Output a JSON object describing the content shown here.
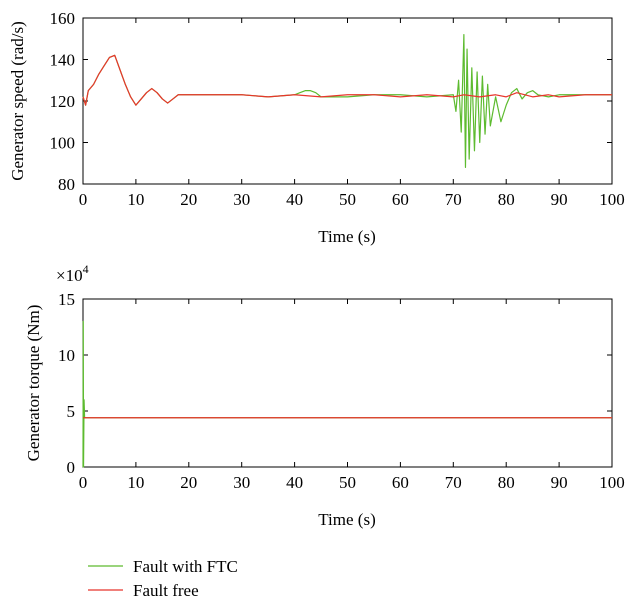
{
  "chart_data": [
    {
      "type": "line",
      "title": "",
      "xlabel": "Time (s)",
      "ylabel": "Generator speed (rad/s)",
      "xlim": [
        0,
        100
      ],
      "ylim": [
        80,
        160
      ],
      "xticks": [
        0,
        10,
        20,
        30,
        40,
        50,
        60,
        70,
        80,
        90,
        100
      ],
      "yticks": [
        80,
        100,
        120,
        140,
        160
      ],
      "grid": false,
      "series": [
        {
          "name": "Fault with FTC",
          "color": "#5dbb2f",
          "x": [
            0,
            0.5,
            1,
            2,
            3,
            4,
            5,
            6,
            7,
            8,
            9,
            10,
            11,
            12,
            13,
            14,
            15,
            16,
            17,
            18,
            20,
            25,
            30,
            35,
            40,
            41,
            42,
            43,
            44,
            45,
            50,
            55,
            60,
            65,
            70,
            70.5,
            71,
            71.5,
            72,
            72.3,
            72.6,
            73,
            73.5,
            74,
            74.5,
            75,
            75.5,
            76,
            76.5,
            77,
            78,
            79,
            80,
            81,
            82,
            83,
            84,
            85,
            86,
            88,
            90,
            95,
            100
          ],
          "y": [
            122,
            118,
            125,
            128,
            133,
            137,
            141,
            142,
            135,
            128,
            122,
            118,
            121,
            124,
            126,
            124,
            121,
            119,
            121,
            123,
            123,
            123,
            123,
            122,
            123,
            124,
            125,
            125,
            124,
            122,
            122,
            123,
            123,
            122,
            123,
            115,
            130,
            105,
            152,
            88,
            145,
            92,
            136,
            96,
            134,
            100,
            132,
            104,
            128,
            108,
            122,
            110,
            118,
            124,
            126,
            121,
            124,
            125,
            123,
            122,
            123,
            123,
            123
          ]
        },
        {
          "name": "Fault free",
          "color": "#e8352c",
          "x": [
            0,
            0.5,
            1,
            2,
            3,
            4,
            5,
            6,
            7,
            8,
            9,
            10,
            11,
            12,
            13,
            14,
            15,
            16,
            17,
            18,
            20,
            25,
            30,
            35,
            40,
            45,
            50,
            55,
            60,
            65,
            70,
            72,
            75,
            78,
            80,
            82,
            85,
            88,
            90,
            95,
            100
          ],
          "y": [
            122,
            118,
            125,
            128,
            133,
            137,
            141,
            142,
            135,
            128,
            122,
            118,
            121,
            124,
            126,
            124,
            121,
            119,
            121,
            123,
            123,
            123,
            123,
            122,
            123,
            122,
            123,
            123,
            122,
            123,
            122,
            123,
            122,
            123,
            122,
            124,
            122,
            123,
            122,
            123,
            123
          ]
        }
      ]
    },
    {
      "type": "line",
      "title": "",
      "xlabel": "Time (s)",
      "ylabel": "Generator torque (Nm)",
      "y_multiplier": "×10",
      "y_multiplier_exponent": "4",
      "xlim": [
        0,
        100
      ],
      "ylim": [
        0,
        15
      ],
      "xticks": [
        0,
        10,
        20,
        30,
        40,
        50,
        60,
        70,
        80,
        90,
        100
      ],
      "yticks": [
        0,
        5,
        10,
        15
      ],
      "grid": false,
      "series": [
        {
          "name": "Fault with FTC",
          "color": "#5dbb2f",
          "x": [
            0,
            0.05,
            0.1,
            0.2,
            0.3,
            0.5,
            100
          ],
          "y": [
            0,
            13,
            0,
            6,
            4.4,
            4.4,
            4.4
          ]
        },
        {
          "name": "Fault free",
          "color": "#e8352c",
          "x": [
            0,
            100
          ],
          "y": [
            4.4,
            4.4
          ]
        }
      ]
    }
  ],
  "legend": {
    "placement": "bottom-left",
    "items": [
      {
        "label": "Fault with FTC",
        "color": "#5dbb2f"
      },
      {
        "label": "Fault free",
        "color": "#e8352c"
      }
    ]
  }
}
